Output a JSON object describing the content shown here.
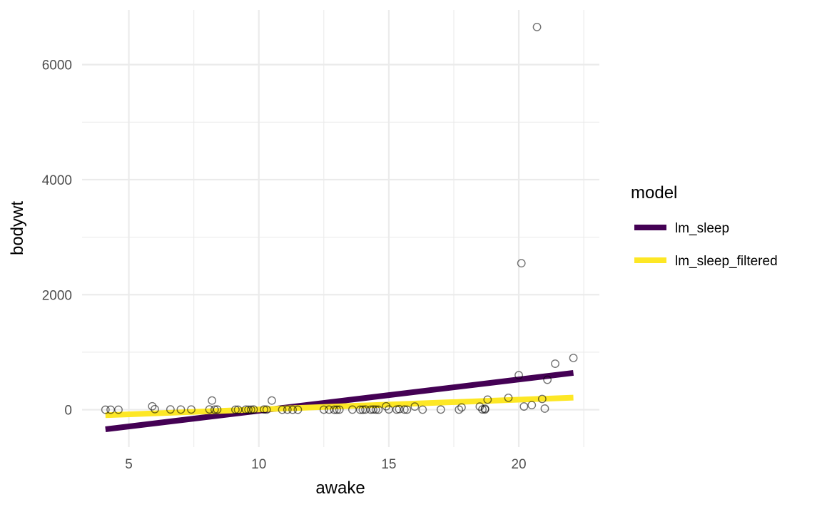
{
  "chart_data": {
    "type": "scatter",
    "title": "",
    "xlabel": "awake",
    "ylabel": "bodywt",
    "xlim": [
      3.2,
      23.1
    ],
    "ylim": [
      -650,
      6950
    ],
    "x_ticks": [
      5,
      10,
      15,
      20
    ],
    "y_ticks": [
      0,
      2000,
      4000,
      6000
    ],
    "grid": true,
    "legend_position": "right",
    "legend_title": "model",
    "points": [
      {
        "x": 4.1,
        "y": 0.0
      },
      {
        "x": 4.3,
        "y": 0.0
      },
      {
        "x": 4.6,
        "y": 0.0
      },
      {
        "x": 5.9,
        "y": 60
      },
      {
        "x": 6.0,
        "y": 10
      },
      {
        "x": 6.6,
        "y": 5
      },
      {
        "x": 7.0,
        "y": 3
      },
      {
        "x": 7.4,
        "y": 4
      },
      {
        "x": 8.1,
        "y": 5
      },
      {
        "x": 8.2,
        "y": 160
      },
      {
        "x": 8.3,
        "y": 2
      },
      {
        "x": 8.4,
        "y": 3
      },
      {
        "x": 9.1,
        "y": 1
      },
      {
        "x": 9.2,
        "y": 0
      },
      {
        "x": 9.5,
        "y": 2
      },
      {
        "x": 9.6,
        "y": 1
      },
      {
        "x": 9.7,
        "y": 0
      },
      {
        "x": 9.8,
        "y": 3
      },
      {
        "x": 10.2,
        "y": 4
      },
      {
        "x": 10.3,
        "y": 2
      },
      {
        "x": 10.5,
        "y": 160
      },
      {
        "x": 10.9,
        "y": 0
      },
      {
        "x": 11.1,
        "y": 1
      },
      {
        "x": 11.3,
        "y": 0
      },
      {
        "x": 11.5,
        "y": 0
      },
      {
        "x": 12.5,
        "y": 1
      },
      {
        "x": 12.7,
        "y": 2
      },
      {
        "x": 12.9,
        "y": 0
      },
      {
        "x": 13.0,
        "y": 0
      },
      {
        "x": 13.1,
        "y": 1
      },
      {
        "x": 13.6,
        "y": 2
      },
      {
        "x": 13.9,
        "y": 0
      },
      {
        "x": 14.0,
        "y": 0
      },
      {
        "x": 14.1,
        "y": 3
      },
      {
        "x": 14.3,
        "y": 1
      },
      {
        "x": 14.4,
        "y": 4
      },
      {
        "x": 14.5,
        "y": 2
      },
      {
        "x": 14.6,
        "y": 0
      },
      {
        "x": 14.9,
        "y": 60
      },
      {
        "x": 15.0,
        "y": 5
      },
      {
        "x": 15.3,
        "y": 2
      },
      {
        "x": 15.4,
        "y": 10
      },
      {
        "x": 15.6,
        "y": 3
      },
      {
        "x": 15.7,
        "y": 1
      },
      {
        "x": 16.0,
        "y": 55
      },
      {
        "x": 16.3,
        "y": 1
      },
      {
        "x": 17.0,
        "y": 3
      },
      {
        "x": 17.7,
        "y": 2
      },
      {
        "x": 17.8,
        "y": 40
      },
      {
        "x": 18.5,
        "y": 55
      },
      {
        "x": 18.6,
        "y": 5
      },
      {
        "x": 18.7,
        "y": 3
      },
      {
        "x": 18.7,
        "y": 18
      },
      {
        "x": 18.8,
        "y": 175
      },
      {
        "x": 19.6,
        "y": 207
      },
      {
        "x": 20.0,
        "y": 600
      },
      {
        "x": 20.1,
        "y": 2547
      },
      {
        "x": 20.2,
        "y": 56
      },
      {
        "x": 20.5,
        "y": 80
      },
      {
        "x": 20.7,
        "y": 6654
      },
      {
        "x": 20.9,
        "y": 187
      },
      {
        "x": 21.0,
        "y": 20
      },
      {
        "x": 21.1,
        "y": 521
      },
      {
        "x": 21.4,
        "y": 800
      },
      {
        "x": 22.1,
        "y": 900
      }
    ],
    "series": [
      {
        "name": "lm_sleep",
        "color": "#440154",
        "x": [
          4.1,
          22.1
        ],
        "y": [
          -340,
          640
        ]
      },
      {
        "name": "lm_sleep_filtered",
        "color": "#fde725",
        "x": [
          4.1,
          22.1
        ],
        "y": [
          -95,
          210
        ]
      }
    ]
  }
}
